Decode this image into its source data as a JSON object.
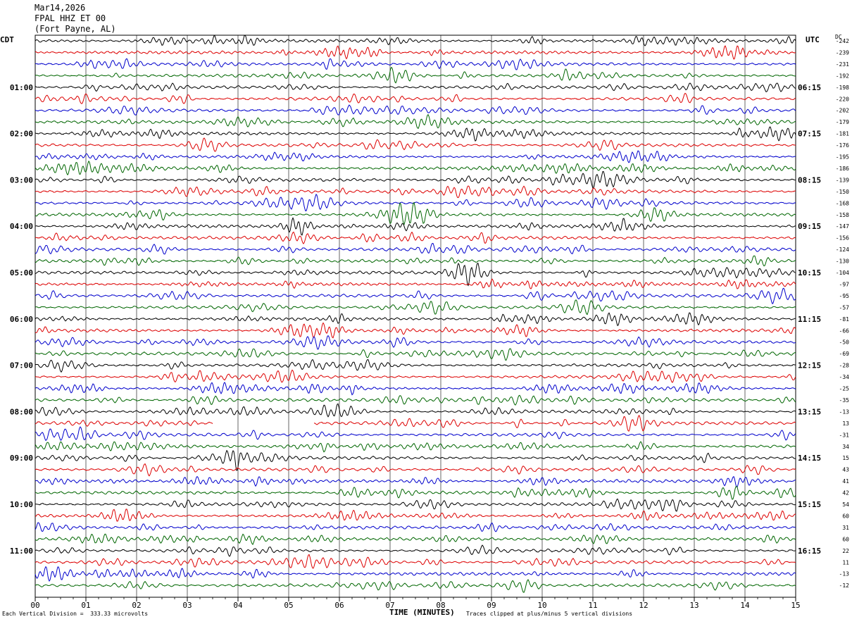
{
  "header": {
    "date": "Mar14,2026",
    "station": "FPAL HHZ ET 00",
    "location": "(Fort Payne, AL)"
  },
  "left_tz": "CDT",
  "right_tz": "UTC",
  "dc_label": "DC",
  "footer": {
    "scale_note": "Each Vertical Division =  333.33 microvolts",
    "clip_note": "Traces clipped at plus/minus 5 vertical divisions"
  },
  "colors": {
    "trace_cycle": [
      "#000000",
      "#dd0000",
      "#0000cc",
      "#006600"
    ],
    "grid": "#000000"
  },
  "chart_data": {
    "type": "line",
    "xlabel": "TIME (MINUTES)",
    "x_ticks": [
      "00",
      "01",
      "02",
      "03",
      "04",
      "05",
      "06",
      "07",
      "08",
      "09",
      "10",
      "11",
      "12",
      "13",
      "14",
      "15"
    ],
    "xlim": [
      0,
      15
    ],
    "rows_per_hour": 4,
    "left_hour_labels": [
      "01:00",
      "02:00",
      "03:00",
      "04:00",
      "05:00",
      "06:00",
      "07:00",
      "08:00",
      "09:00",
      "10:00",
      "11:00"
    ],
    "right_hour_labels": [
      "06:15",
      "07:15",
      "08:15",
      "09:15",
      "10:15",
      "11:15",
      "12:15",
      "13:15",
      "14:15",
      "15:15",
      "16:15"
    ],
    "dc_offsets": [
      -242,
      -239,
      -231,
      -192,
      -198,
      -220,
      -202,
      -179,
      -181,
      -176,
      -195,
      -186,
      -139,
      -150,
      -168,
      -158,
      -147,
      -156,
      -124,
      -130,
      -104,
      -97,
      -95,
      -57,
      -81,
      -66,
      -50,
      -69,
      -28,
      -34,
      -25,
      -35,
      -13,
      13,
      -31,
      34,
      15,
      43,
      41,
      42,
      54,
      60,
      31,
      60,
      22,
      11,
      -13,
      -12
    ],
    "gap": {
      "row": 33,
      "start_min": 3.5,
      "end_min": 5.5
    }
  }
}
